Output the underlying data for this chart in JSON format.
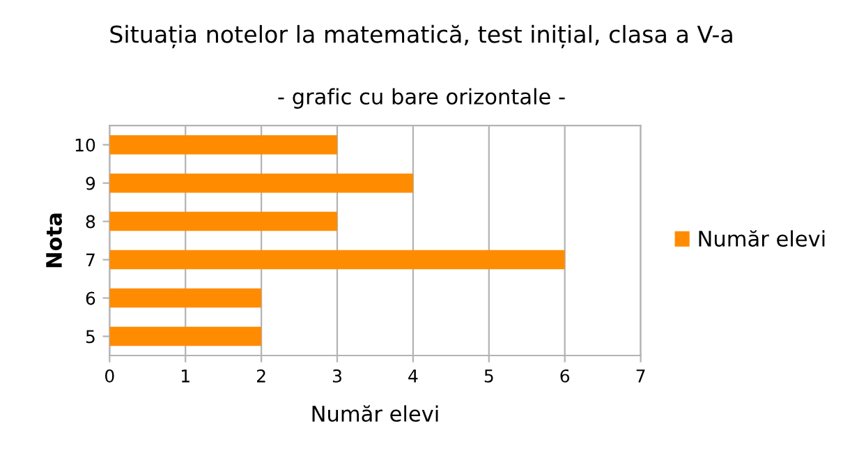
{
  "chart_data": {
    "type": "bar",
    "orientation": "horizontal",
    "title": "Situația notelor la matematică, test inițial, clasa a V-a",
    "subtitle": "- grafic cu bare orizontale -",
    "xlabel": "Număr elevi",
    "ylabel": "Nota",
    "categories": [
      "10",
      "9",
      "8",
      "7",
      "6",
      "5"
    ],
    "series": [
      {
        "name": "Număr elevi",
        "color": "#ff8c00",
        "values": [
          3,
          4,
          3,
          6,
          2,
          2
        ]
      }
    ],
    "xlim": [
      0,
      7
    ],
    "xticks": [
      0,
      1,
      2,
      3,
      4,
      5,
      6,
      7
    ],
    "grid": "x",
    "legend": "right"
  }
}
